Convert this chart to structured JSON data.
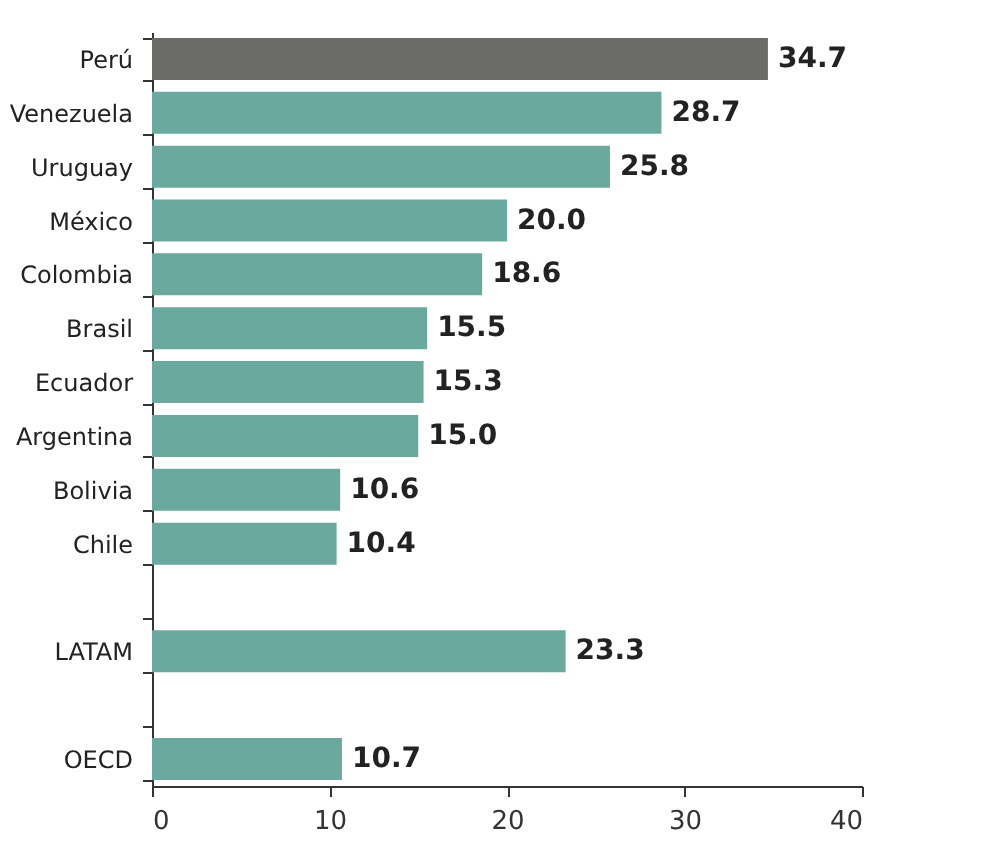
{
  "chart_data": {
    "type": "bar",
    "orientation": "horizontal",
    "categories": [
      "Perú",
      "Venezuela",
      "Uruguay",
      "México",
      "Colombia",
      "Brasil",
      "Ecuador",
      "Argentina",
      "Bolivia",
      "Chile",
      null,
      "LATAM",
      null,
      "OECD"
    ],
    "values": [
      34.7,
      28.7,
      25.8,
      20.0,
      18.6,
      15.5,
      15.3,
      15.0,
      10.6,
      10.4,
      null,
      23.3,
      null,
      10.7
    ],
    "colors": [
      "#6b6b68",
      "#6aaa9e",
      "#6aaa9e",
      "#6aaa9e",
      "#6aaa9e",
      "#6aaa9e",
      "#6aaa9e",
      "#6aaa9e",
      "#6aaa9e",
      "#6aaa9e",
      null,
      "#6aaa9e",
      null,
      "#6aaa9e"
    ],
    "value_labels": [
      "34.7",
      "28.7",
      "25.8",
      "20.0",
      "18.6",
      "15.5",
      "15.3",
      "15.0",
      "10.6",
      "10.4",
      null,
      "23.3",
      null,
      "10.7"
    ],
    "xlim": [
      0,
      40
    ],
    "xticks": [
      0,
      10,
      20,
      30,
      40
    ],
    "grid": false
  }
}
